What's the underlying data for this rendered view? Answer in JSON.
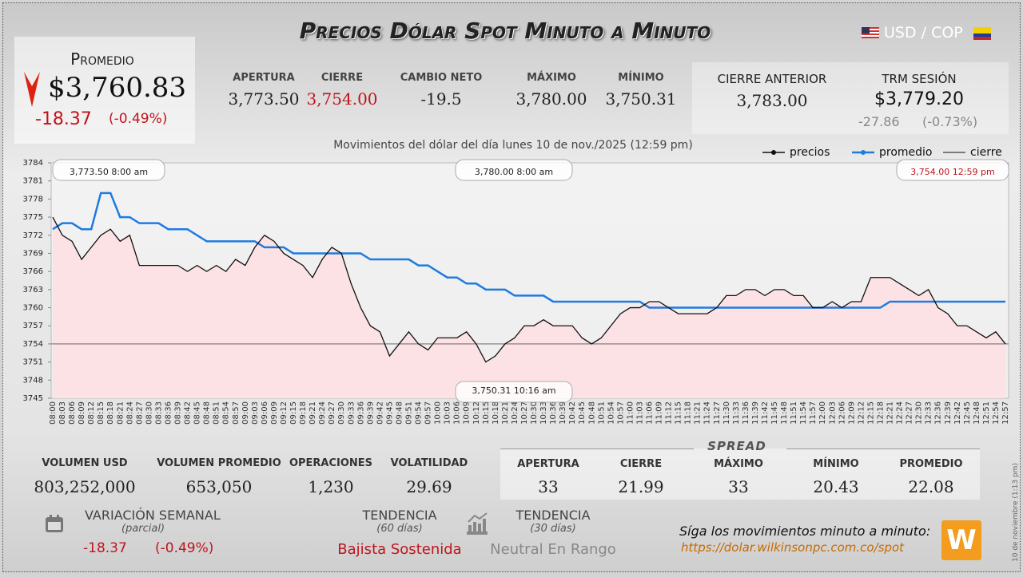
{
  "header": {
    "title": "Precios Dólar Spot Minuto a Minuto",
    "pair": "USD / COP"
  },
  "promedio": {
    "label": "Promedio",
    "price": "$3,760.83",
    "change": "-18.37",
    "percent": "(-0.49%)"
  },
  "session": [
    {
      "label": "APERTURA",
      "value": "3,773.50"
    },
    {
      "label": "CIERRE",
      "value": "3,754.00"
    },
    {
      "label": "CAMBIO NETO",
      "value": "-19.5"
    },
    {
      "label": "MÁXIMO",
      "value": "3,780.00"
    },
    {
      "label": "MÍNIMO",
      "value": "3,750.31"
    }
  ],
  "previous": {
    "label": "CIERRE ANTERIOR",
    "value": "3,783.00"
  },
  "trm": {
    "label": "TRM SESIÓN",
    "value": "$3,779.20",
    "change": "-27.86",
    "percent": "(-0.73%)"
  },
  "chart_data": {
    "type": "line",
    "subtitle": "Movimientos del dólar del día lunes 10 de nov./2025 (12:59 pm)",
    "categories": [
      "08:00",
      "08:03",
      "08:06",
      "08:09",
      "08:12",
      "08:15",
      "08:18",
      "08:21",
      "08:24",
      "08:27",
      "08:30",
      "08:33",
      "08:36",
      "08:39",
      "08:42",
      "08:45",
      "08:48",
      "08:51",
      "08:54",
      "08:57",
      "09:00",
      "09:03",
      "09:06",
      "09:09",
      "09:12",
      "09:15",
      "09:18",
      "09:21",
      "09:24",
      "09:27",
      "09:30",
      "09:33",
      "09:36",
      "09:39",
      "09:42",
      "09:45",
      "09:48",
      "09:51",
      "09:54",
      "09:57",
      "10:00",
      "10:03",
      "10:06",
      "10:09",
      "10:12",
      "10:15",
      "10:18",
      "10:21",
      "10:24",
      "10:27",
      "10:30",
      "10:33",
      "10:36",
      "10:39",
      "10:42",
      "10:45",
      "10:48",
      "10:51",
      "10:54",
      "10:57",
      "11:00",
      "11:03",
      "11:06",
      "11:09",
      "11:12",
      "11:15",
      "11:18",
      "11:21",
      "11:24",
      "11:27",
      "11:30",
      "11:33",
      "11:36",
      "11:39",
      "11:42",
      "11:45",
      "11:48",
      "11:51",
      "11:54",
      "11:57",
      "12:00",
      "12:03",
      "12:06",
      "12:09",
      "12:12",
      "12:15",
      "12:18",
      "12:21",
      "12:24",
      "12:27",
      "12:30",
      "12:33",
      "12:36",
      "12:39",
      "12:42",
      "12:45",
      "12:48",
      "12:51",
      "12:54",
      "12:57"
    ],
    "series": [
      {
        "name": "precios",
        "color": "#111111",
        "values": [
          3775,
          3772,
          3771,
          3768,
          3770,
          3772,
          3773,
          3771,
          3772,
          3767,
          3767,
          3767,
          3767,
          3767,
          3766,
          3767,
          3766,
          3767,
          3766,
          3768,
          3767,
          3770,
          3772,
          3771,
          3769,
          3768,
          3767,
          3765,
          3768,
          3770,
          3769,
          3764,
          3760,
          3757,
          3756,
          3752,
          3754,
          3756,
          3754,
          3753,
          3755,
          3755,
          3755,
          3756,
          3754,
          3751,
          3752,
          3754,
          3755,
          3757,
          3757,
          3758,
          3757,
          3757,
          3757,
          3755,
          3754,
          3755,
          3757,
          3759,
          3760,
          3760,
          3761,
          3761,
          3760,
          3759,
          3759,
          3759,
          3759,
          3760,
          3762,
          3762,
          3763,
          3763,
          3762,
          3763,
          3763,
          3762,
          3762,
          3760,
          3760,
          3761,
          3760,
          3761,
          3761,
          3765,
          3765,
          3765,
          3764,
          3763,
          3762,
          3763,
          3760,
          3759,
          3757,
          3757,
          3756,
          3755,
          3756,
          3754
        ]
      },
      {
        "name": "promedio",
        "color": "#1e7be0",
        "values": [
          3773,
          3774,
          3774,
          3773,
          3773,
          3779,
          3779,
          3775,
          3775,
          3774,
          3774,
          3774,
          3773,
          3773,
          3773,
          3772,
          3771,
          3771,
          3771,
          3771,
          3771,
          3771,
          3770,
          3770,
          3770,
          3769,
          3769,
          3769,
          3769,
          3769,
          3769,
          3769,
          3769,
          3768,
          3768,
          3768,
          3768,
          3768,
          3767,
          3767,
          3766,
          3765,
          3765,
          3764,
          3764,
          3763,
          3763,
          3763,
          3762,
          3762,
          3762,
          3762,
          3761,
          3761,
          3761,
          3761,
          3761,
          3761,
          3761,
          3761,
          3761,
          3761,
          3760,
          3760,
          3760,
          3760,
          3760,
          3760,
          3760,
          3760,
          3760,
          3760,
          3760,
          3760,
          3760,
          3760,
          3760,
          3760,
          3760,
          3760,
          3760,
          3760,
          3760,
          3760,
          3760,
          3760,
          3760,
          3761,
          3761,
          3761,
          3761,
          3761,
          3761,
          3761,
          3761,
          3761,
          3761,
          3761,
          3761,
          3761
        ]
      }
    ],
    "reference_line": {
      "name": "cierre",
      "value": 3754,
      "color": "#555555"
    },
    "area_color": "#fde2e5",
    "ylim": [
      3745,
      3784
    ],
    "yticks": [
      3745,
      3748,
      3751,
      3754,
      3757,
      3760,
      3763,
      3766,
      3769,
      3772,
      3775,
      3778,
      3781,
      3784
    ],
    "annotations": [
      "3,773.50 8:00 am",
      "3,780.00 8:00 am",
      "3,754.00 12:59 pm",
      "3,750.31 10:16 am"
    ]
  },
  "volume": [
    {
      "label": "VOLUMEN USD",
      "value": "803,252,000"
    },
    {
      "label": "VOLUMEN PROMEDIO",
      "value": "653,050"
    },
    {
      "label": "OPERACIONES",
      "value": "1,230"
    },
    {
      "label": "VOLATILIDAD",
      "value": "29.69"
    }
  ],
  "spread": {
    "title": "SPREAD",
    "items": [
      {
        "label": "APERTURA",
        "value": "33"
      },
      {
        "label": "CIERRE",
        "value": "21.99"
      },
      {
        "label": "MÁXIMO",
        "value": "33"
      },
      {
        "label": "MÍNIMO",
        "value": "20.43"
      },
      {
        "label": "PROMEDIO",
        "value": "22.08"
      }
    ]
  },
  "weekly": {
    "label": "VARIACIÓN SEMANAL",
    "note": "(parcial)",
    "change": "-18.37",
    "percent": "(-0.49%)"
  },
  "trend": [
    {
      "label": "TENDENCIA",
      "note": "(60 días)",
      "value": "Bajista Sostenida"
    },
    {
      "label": "TENDENCIA",
      "note": "(30 días)",
      "value": "Neutral En Rango"
    }
  ],
  "follow": {
    "text": "Síga los movimientos minuto a minuto:",
    "url": "https://dolar.wilkinsonpc.com.co/spot"
  },
  "timestamp": "10 de noviembre (1:13 pm)"
}
